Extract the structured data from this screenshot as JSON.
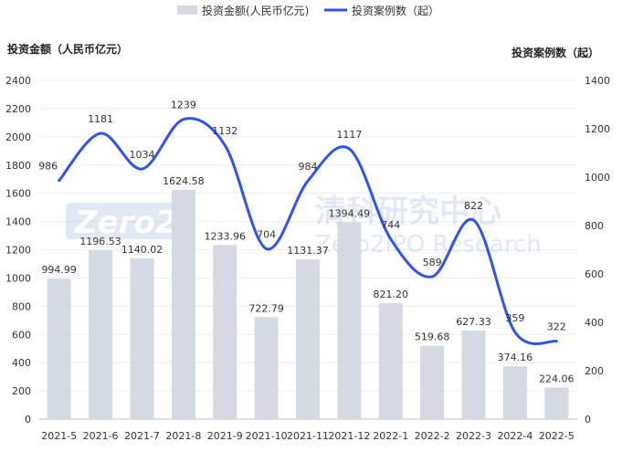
{
  "chart_data": {
    "type": "bar",
    "categories": [
      "2021-5",
      "2021-6",
      "2021-7",
      "2021-8",
      "2021-9",
      "2021-10",
      "2021-11",
      "2021-12",
      "2022-1",
      "2022-2",
      "2022-3",
      "2022-4",
      "2022-5"
    ],
    "series": [
      {
        "name": "投资金额(人民币亿元)",
        "type": "bar",
        "axis": "left",
        "values": [
          994.99,
          1196.53,
          1140.02,
          1624.58,
          1233.96,
          722.79,
          1131.37,
          1394.49,
          821.2,
          519.68,
          627.33,
          374.16,
          224.06
        ],
        "labels": [
          "994.99",
          "1196.53",
          "1140.02",
          "1624.58",
          "1233.96",
          "722.79",
          "1131.37",
          "1394.49",
          "821.20",
          "519.68",
          "627.33",
          "374.16",
          "224.06"
        ],
        "color": "#d4dae4"
      },
      {
        "name": "投资案例数（起）",
        "type": "line",
        "axis": "right",
        "values": [
          986,
          1181,
          1034,
          1239,
          1132,
          704,
          984,
          1117,
          744,
          589,
          822,
          359,
          322
        ],
        "labels": [
          "986",
          "1181",
          "1034",
          "1239",
          "1132",
          "704",
          "984",
          "1117",
          "744",
          "589",
          "822",
          "359",
          "322"
        ],
        "color": "#2f54eb"
      }
    ],
    "ylabel_left": "投资金额（人民币亿元）",
    "ylabel_right": "投资案例数（起）",
    "ylim_left": [
      0,
      2400
    ],
    "ylim_right": [
      0,
      1400
    ],
    "yticks_left": [
      "0",
      "200",
      "400",
      "600",
      "800",
      "1000",
      "1200",
      "1400",
      "1600",
      "1800",
      "2000",
      "2200",
      "2400"
    ],
    "yticks_right": [
      "0",
      "200",
      "400",
      "600",
      "800",
      "1000",
      "1200",
      "1400"
    ],
    "legend_position": "top-center",
    "grid": true
  },
  "watermark": {
    "logo_text": "Zero2IPO",
    "cn_text": "清科研究中心",
    "en_text": "Zero2IPO Research"
  }
}
